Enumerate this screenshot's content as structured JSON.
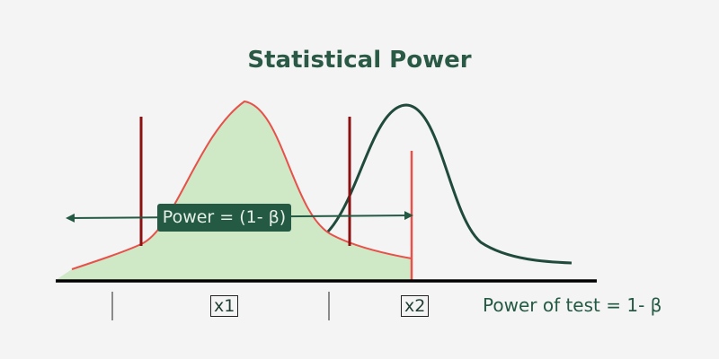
{
  "title": "Statistical Power",
  "power_label": "Power = (1- β)",
  "axis_labels": [
    "x1",
    "x2"
  ],
  "caption": "Power of test = 1- β",
  "colors": {
    "title": "#2a5a45",
    "null_curve": "#e8504a",
    "null_fill": "#cfe8c6",
    "alt_curve": "#1f4a3c",
    "critical_lines": "#8b1010",
    "threshold_line": "#e8504a",
    "badge": "#245a44"
  }
}
